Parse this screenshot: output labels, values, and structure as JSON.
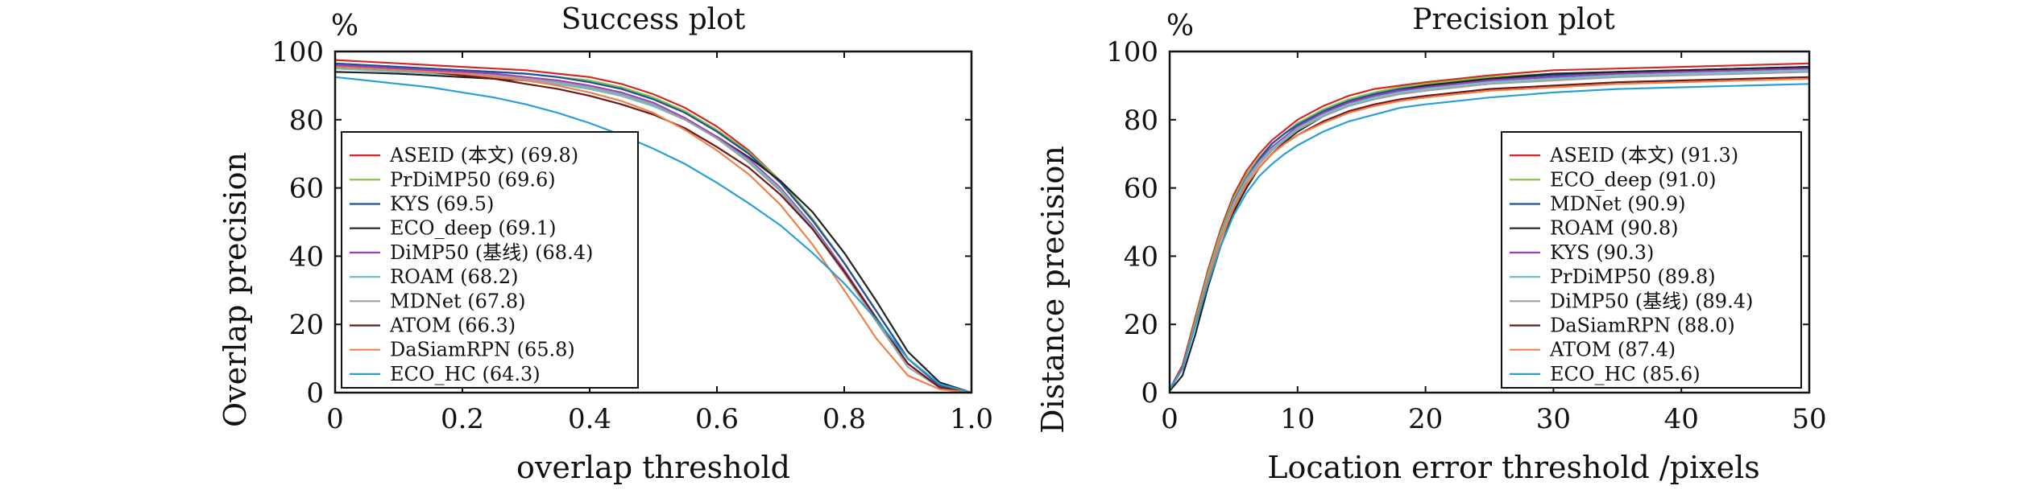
{
  "chart_data": [
    {
      "type": "line",
      "title": "Success plot",
      "xlabel": "overlap threshold",
      "ylabel": "Overlap precision",
      "unit_label": "%",
      "xlim": [
        0,
        1.0
      ],
      "ylim": [
        0,
        100
      ],
      "xticks": [
        "0",
        "0.2",
        "0.4",
        "0.6",
        "0.8",
        "1.0"
      ],
      "yticks": [
        "0",
        "20",
        "40",
        "60",
        "80",
        "100"
      ],
      "legend_position": "lower-left",
      "grid": false,
      "x": [
        0,
        0.05,
        0.1,
        0.15,
        0.2,
        0.25,
        0.3,
        0.35,
        0.4,
        0.45,
        0.5,
        0.55,
        0.6,
        0.65,
        0.7,
        0.75,
        0.8,
        0.85,
        0.9,
        0.95,
        1.0
      ],
      "series": [
        {
          "name": "ASEID (本文) (69.8)",
          "color": "#d62728",
          "values": [
            97.5,
            97,
            96.5,
            96,
            95.5,
            95,
            94.5,
            93.5,
            92.5,
            90.5,
            87.5,
            83.5,
            78,
            71,
            62,
            51,
            38,
            24,
            10,
            2,
            0
          ]
        },
        {
          "name": "PrDiMP50 (69.6)",
          "color": "#7fc241",
          "values": [
            96.5,
            96,
            95.5,
            95,
            94.5,
            94,
            93.5,
            92.5,
            91.5,
            89.5,
            86.5,
            82.5,
            77,
            70.5,
            62,
            51,
            38,
            24,
            10,
            2,
            0
          ]
        },
        {
          "name": "KYS (69.5)",
          "color": "#1f4e9c",
          "values": [
            96.5,
            96,
            95.5,
            95,
            94.5,
            94,
            93.5,
            92.5,
            91,
            89,
            86,
            82,
            76.5,
            70,
            61.5,
            50.5,
            38,
            24,
            10,
            2,
            0
          ]
        },
        {
          "name": "ECO_deep (69.1)",
          "color": "#222222",
          "values": [
            94,
            93.8,
            93.5,
            93,
            92.5,
            92,
            91.5,
            90.5,
            89,
            87,
            84,
            80,
            75,
            69,
            62,
            53,
            41,
            27,
            12,
            3,
            0
          ]
        },
        {
          "name": "DiMP50 (基线) (68.4)",
          "color": "#9b3fbf",
          "values": [
            96,
            95.5,
            95,
            94.5,
            94,
            93.5,
            92.5,
            91.5,
            90,
            88,
            85,
            80.5,
            75,
            68.5,
            60,
            49,
            36,
            22,
            8.5,
            1.5,
            0
          ]
        },
        {
          "name": "ROAM (68.2)",
          "color": "#6cc3c6",
          "values": [
            95,
            94.5,
            94,
            93.5,
            93,
            92.5,
            91.5,
            90.5,
            89,
            87,
            84,
            80,
            74.5,
            68,
            59.5,
            48.5,
            35.5,
            22,
            8.5,
            1.5,
            0
          ]
        },
        {
          "name": "MDNet (67.8)",
          "color": "#a0a0a0",
          "values": [
            95.5,
            95,
            94.5,
            94,
            93.5,
            93,
            92,
            91,
            89.5,
            87.5,
            84.5,
            80,
            74.5,
            67.5,
            59,
            48,
            35,
            21,
            7.5,
            1.5,
            0
          ]
        },
        {
          "name": "ATOM (66.3)",
          "color": "#6b1a1a",
          "values": [
            95.5,
            95,
            94.5,
            94,
            93,
            92,
            90.5,
            89,
            87,
            84.5,
            81.5,
            77.5,
            72,
            66,
            58,
            48,
            35.5,
            22,
            8.5,
            1.5,
            0
          ]
        },
        {
          "name": "DaSiamRPN (65.8)",
          "color": "#f07f4a",
          "values": [
            95.5,
            95,
            94.5,
            94,
            93.5,
            92.5,
            91.5,
            90,
            88,
            85.5,
            82,
            77,
            71,
            64,
            55,
            43.5,
            30,
            16,
            5,
            1,
            0
          ]
        },
        {
          "name": "ECO_HC (64.3)",
          "color": "#2a9fd6",
          "values": [
            92.5,
            91.5,
            90.5,
            89.5,
            88,
            86.5,
            84.5,
            82,
            79,
            75.5,
            71.5,
            67,
            61.5,
            55.5,
            49,
            41,
            32,
            21.5,
            10,
            2.5,
            0
          ]
        }
      ]
    },
    {
      "type": "line",
      "title": "Precision plot",
      "xlabel": "Location error threshold /pixels",
      "ylabel": "Distance precision",
      "unit_label": "%",
      "xlim": [
        0,
        50
      ],
      "ylim": [
        0,
        100
      ],
      "xticks": [
        "0",
        "10",
        "20",
        "30",
        "40",
        "50"
      ],
      "yticks": [
        "0",
        "20",
        "40",
        "60",
        "80",
        "100"
      ],
      "legend_position": "lower-right",
      "grid": false,
      "x": [
        0,
        1,
        2,
        3,
        4,
        5,
        6,
        7,
        8,
        9,
        10,
        12,
        14,
        16,
        18,
        20,
        25,
        30,
        35,
        40,
        45,
        50
      ],
      "series": [
        {
          "name": "ASEID (本文) (91.3)",
          "color": "#d62728",
          "values": [
            1,
            8,
            22,
            36,
            48,
            58,
            65,
            70,
            74,
            77,
            80,
            84,
            87,
            89,
            90,
            91,
            93,
            94.5,
            95,
            95.5,
            96,
            96.5
          ]
        },
        {
          "name": "ECO_deep (91.0)",
          "color": "#7fc241",
          "values": [
            1,
            7,
            21,
            35,
            47,
            57,
            64,
            69,
            73,
            76,
            79,
            83,
            86,
            88,
            89.5,
            90.5,
            92.5,
            93.5,
            94,
            94.5,
            95,
            95.5
          ]
        },
        {
          "name": "MDNet (90.9)",
          "color": "#1f4e9c",
          "values": [
            1,
            7,
            20,
            34,
            46,
            56,
            63,
            68.5,
            73,
            76,
            78.5,
            82.5,
            85.5,
            87.5,
            89,
            90,
            92,
            93,
            94,
            94.5,
            95,
            95.5
          ]
        },
        {
          "name": "ROAM (90.8)",
          "color": "#222222",
          "values": [
            0.5,
            5,
            17,
            31,
            43,
            53,
            60,
            66,
            70,
            73.5,
            76.5,
            81,
            84.5,
            87,
            88.5,
            90,
            92,
            93.5,
            94,
            94.5,
            95,
            95.5
          ]
        },
        {
          "name": "KYS (90.3)",
          "color": "#9b3fbf",
          "values": [
            1,
            7,
            20,
            34,
            46,
            56,
            63,
            68,
            72,
            75,
            78,
            82,
            85,
            87,
            88.5,
            89.5,
            91.5,
            92.5,
            93.5,
            94,
            94.5,
            95
          ]
        },
        {
          "name": "PrDiMP50 (89.8)",
          "color": "#6cc3c6",
          "values": [
            1,
            7,
            20,
            34,
            46,
            55.5,
            62.5,
            67.5,
            71.5,
            74.5,
            77.5,
            81.5,
            84.5,
            86.5,
            88,
            89,
            91,
            92,
            93,
            93.5,
            94,
            94.5
          ]
        },
        {
          "name": "DiMP50 (基线) (89.4)",
          "color": "#a0a0a0",
          "values": [
            1,
            7,
            20,
            33.5,
            45.5,
            55,
            62,
            67,
            71,
            74,
            77,
            81,
            84,
            86,
            87.5,
            88.5,
            90.5,
            91.5,
            92.5,
            93,
            93.5,
            94
          ]
        },
        {
          "name": "DaSiamRPN (88.0)",
          "color": "#6b1a1a",
          "values": [
            1,
            7,
            20,
            33,
            45,
            54,
            61,
            66,
            70,
            73,
            75.5,
            79.5,
            82.5,
            84.5,
            86,
            87,
            89,
            90,
            91,
            91.5,
            92,
            92.5
          ]
        },
        {
          "name": "ATOM (87.4)",
          "color": "#f07f4a",
          "values": [
            1,
            7,
            20,
            33,
            45,
            54,
            61,
            66,
            70,
            73,
            75.5,
            79,
            82,
            84,
            85.5,
            86.5,
            88.5,
            89.5,
            90.5,
            91,
            91.5,
            92
          ]
        },
        {
          "name": "ECO_HC (85.6)",
          "color": "#2a9fd6",
          "values": [
            1,
            7,
            19.5,
            32,
            43,
            52,
            58.5,
            63.5,
            67,
            70,
            72.5,
            76.5,
            79.5,
            81.5,
            83.5,
            84.5,
            86.5,
            88,
            89,
            89.5,
            90,
            90.5
          ]
        }
      ]
    }
  ]
}
